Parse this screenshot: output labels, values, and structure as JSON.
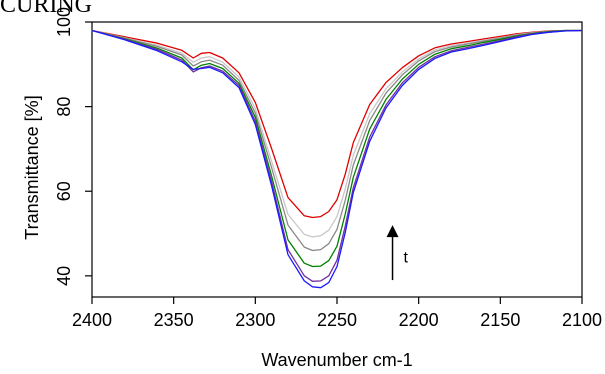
{
  "chart_data": {
    "type": "line",
    "title": "CURING",
    "xlabel": "Wavenumber cm-1",
    "ylabel": "Transmittance [%]",
    "xlim": [
      2400,
      2100
    ],
    "ylim": [
      35,
      100
    ],
    "x_reversed": true,
    "xticks": [
      2400,
      2350,
      2300,
      2250,
      2200,
      2150,
      2100
    ],
    "yticks": [
      40,
      60,
      80,
      100
    ],
    "grid": false,
    "annotation": {
      "text": "t",
      "arrow": "up",
      "x": 2216,
      "y_from": 39,
      "y_to": 52
    },
    "x": [
      2400,
      2380,
      2360,
      2345,
      2338,
      2333,
      2328,
      2320,
      2310,
      2300,
      2290,
      2280,
      2270,
      2265,
      2260,
      2255,
      2250,
      2245,
      2240,
      2230,
      2220,
      2210,
      2200,
      2190,
      2180,
      2170,
      2160,
      2150,
      2140,
      2130,
      2120,
      2110,
      2100
    ],
    "series": [
      {
        "color": "#e00000",
        "values": [
          98,
          96.5,
          95,
          93.3,
          91.5,
          92.6,
          92.8,
          91.5,
          88,
          81,
          70,
          58.5,
          54.2,
          53.8,
          54,
          55.2,
          58,
          64,
          71.5,
          80.5,
          85.7,
          89.2,
          92,
          93.9,
          94.8,
          95.4,
          96,
          96.6,
          97.2,
          97.6,
          97.9,
          98,
          98
        ]
      },
      {
        "color": "#c8c8c8",
        "values": [
          98,
          96.3,
          94.5,
          92.6,
          90.5,
          91.5,
          91.8,
          90.5,
          87,
          79.5,
          67,
          54.5,
          49.8,
          49.2,
          49.5,
          50.8,
          54,
          60.5,
          68.5,
          78.3,
          84.2,
          88.2,
          91.3,
          93.4,
          94.4,
          95,
          95.7,
          96.3,
          97,
          97.5,
          97.8,
          98,
          98
        ]
      },
      {
        "color": "#888888",
        "values": [
          98,
          96.2,
          94.2,
          92.2,
          89.6,
          90.6,
          91,
          89.8,
          86.2,
          78.5,
          65.5,
          52,
          46.8,
          46,
          46.2,
          47.6,
          51,
          57.8,
          66.2,
          76.7,
          83.2,
          87.5,
          90.8,
          93,
          94.1,
          94.8,
          95.5,
          96.2,
          96.9,
          97.4,
          97.8,
          98,
          98
        ]
      },
      {
        "color": "#008000",
        "values": [
          98,
          96,
          93.8,
          91.5,
          88.7,
          89.8,
          90.2,
          89,
          85.5,
          77.5,
          63.5,
          48.5,
          43,
          42.2,
          42.3,
          43.6,
          47,
          54.6,
          63.3,
          74.7,
          81.7,
          86.5,
          90,
          92.4,
          93.7,
          94.4,
          95.2,
          95.9,
          96.7,
          97.3,
          97.7,
          98,
          98
        ]
      },
      {
        "color": "#7030a0",
        "values": [
          98,
          95.9,
          93.5,
          91,
          88.2,
          89.2,
          89.6,
          88.4,
          85,
          76.5,
          62.2,
          46.2,
          40,
          38.7,
          38.8,
          40,
          43.7,
          51.7,
          60.8,
          72.8,
          80.4,
          85.6,
          89.3,
          91.8,
          93.2,
          94,
          94.8,
          95.6,
          96.5,
          97.2,
          97.6,
          97.9,
          98
        ]
      },
      {
        "color": "#1a1aff",
        "values": [
          98,
          95.8,
          93.2,
          90.6,
          88.8,
          89,
          89.3,
          88,
          84.5,
          75.8,
          61.2,
          45,
          38.8,
          37.4,
          37.2,
          38.4,
          42.2,
          50.2,
          59.7,
          71.8,
          79.7,
          85,
          88.8,
          91.4,
          92.9,
          93.7,
          94.5,
          95.4,
          96.3,
          97.1,
          97.6,
          97.9,
          98
        ]
      }
    ]
  }
}
